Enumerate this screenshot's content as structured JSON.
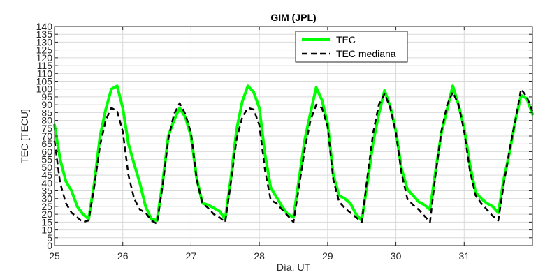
{
  "chart_data": {
    "type": "line",
    "title": "GIM (JPL)",
    "xlabel": "Día, UT",
    "ylabel": "TEC [TECU]",
    "xlim": [
      25,
      32
    ],
    "ylim": [
      0,
      140
    ],
    "x_ticks": [
      25,
      26,
      27,
      28,
      29,
      30,
      31
    ],
    "y_ticks": [
      0,
      5,
      10,
      15,
      20,
      25,
      30,
      35,
      40,
      45,
      50,
      55,
      60,
      65,
      70,
      75,
      80,
      85,
      90,
      95,
      100,
      105,
      110,
      115,
      120,
      125,
      130,
      135,
      140
    ],
    "grid": true,
    "legend_position": "top-center",
    "series": [
      {
        "name": "TEC",
        "color": "#00ff00",
        "style": "solid",
        "x": [
          25.0,
          25.083,
          25.167,
          25.25,
          25.333,
          25.417,
          25.5,
          25.583,
          25.667,
          25.75,
          25.833,
          25.917,
          26.0,
          26.083,
          26.167,
          26.25,
          26.333,
          26.417,
          26.5,
          26.583,
          26.667,
          26.75,
          26.833,
          26.917,
          27.0,
          27.083,
          27.167,
          27.25,
          27.333,
          27.417,
          27.5,
          27.583,
          27.667,
          27.75,
          27.833,
          27.917,
          28.0,
          28.083,
          28.167,
          28.25,
          28.333,
          28.417,
          28.5,
          28.583,
          28.667,
          28.75,
          28.833,
          28.917,
          29.0,
          29.083,
          29.167,
          29.25,
          29.333,
          29.417,
          29.5,
          29.583,
          29.667,
          29.75,
          29.833,
          29.917,
          30.0,
          30.083,
          30.167,
          30.25,
          30.333,
          30.417,
          30.5,
          30.583,
          30.667,
          30.75,
          30.833,
          30.917,
          31.0,
          31.083,
          31.167,
          31.25,
          31.333,
          31.417,
          31.5,
          31.583,
          31.667,
          31.75,
          31.833,
          31.917,
          32.0
        ],
        "values": [
          77,
          55,
          41,
          35,
          25,
          20,
          17,
          40,
          70,
          87,
          100,
          102,
          88,
          65,
          52,
          40,
          25,
          17,
          16,
          40,
          70,
          80,
          88,
          82,
          70,
          43,
          27,
          26,
          24,
          22,
          17,
          43,
          74,
          92,
          102,
          98,
          88,
          58,
          37,
          31,
          25,
          20,
          18,
          43,
          68,
          85,
          101,
          93,
          78,
          45,
          32,
          30,
          27,
          20,
          16,
          40,
          66,
          84,
          99,
          89,
          73,
          49,
          36,
          32,
          28,
          26,
          23,
          48,
          72,
          87,
          102,
          90,
          75,
          52,
          34,
          30,
          27,
          25,
          21,
          43,
          60,
          80,
          96,
          94,
          84
        ]
      },
      {
        "name": "TEC mediana",
        "color": "#000000",
        "style": "dashed",
        "x": [
          25.0,
          25.083,
          25.167,
          25.25,
          25.333,
          25.417,
          25.5,
          25.583,
          25.667,
          25.75,
          25.833,
          25.917,
          26.0,
          26.083,
          26.167,
          26.25,
          26.333,
          26.417,
          26.5,
          26.583,
          26.667,
          26.75,
          26.833,
          26.917,
          27.0,
          27.083,
          27.167,
          27.25,
          27.333,
          27.417,
          27.5,
          27.583,
          27.667,
          27.75,
          27.833,
          27.917,
          28.0,
          28.083,
          28.167,
          28.25,
          28.333,
          28.417,
          28.5,
          28.583,
          28.667,
          28.75,
          28.833,
          28.917,
          29.0,
          29.083,
          29.167,
          29.25,
          29.333,
          29.417,
          29.5,
          29.583,
          29.667,
          29.75,
          29.833,
          29.917,
          30.0,
          30.083,
          30.167,
          30.25,
          30.333,
          30.417,
          30.5,
          30.583,
          30.667,
          30.75,
          30.833,
          30.917,
          31.0,
          31.083,
          31.167,
          31.25,
          31.333,
          31.417,
          31.5,
          31.583,
          31.667,
          31.75,
          31.833,
          31.917,
          32.0
        ],
        "values": [
          67,
          40,
          27,
          21,
          18,
          15,
          16,
          38,
          64,
          80,
          88,
          86,
          73,
          45,
          30,
          23,
          21,
          16,
          14,
          38,
          68,
          84,
          91,
          84,
          72,
          42,
          27,
          24,
          20,
          18,
          15,
          40,
          68,
          82,
          88,
          87,
          77,
          48,
          29,
          27,
          23,
          19,
          15,
          38,
          62,
          80,
          90,
          88,
          76,
          42,
          28,
          24,
          21,
          18,
          15,
          44,
          72,
          90,
          97,
          88,
          72,
          46,
          30,
          26,
          23,
          19,
          15,
          46,
          73,
          90,
          98,
          90,
          73,
          48,
          32,
          27,
          23,
          19,
          16,
          40,
          62,
          80,
          100,
          95,
          86
        ]
      }
    ]
  }
}
